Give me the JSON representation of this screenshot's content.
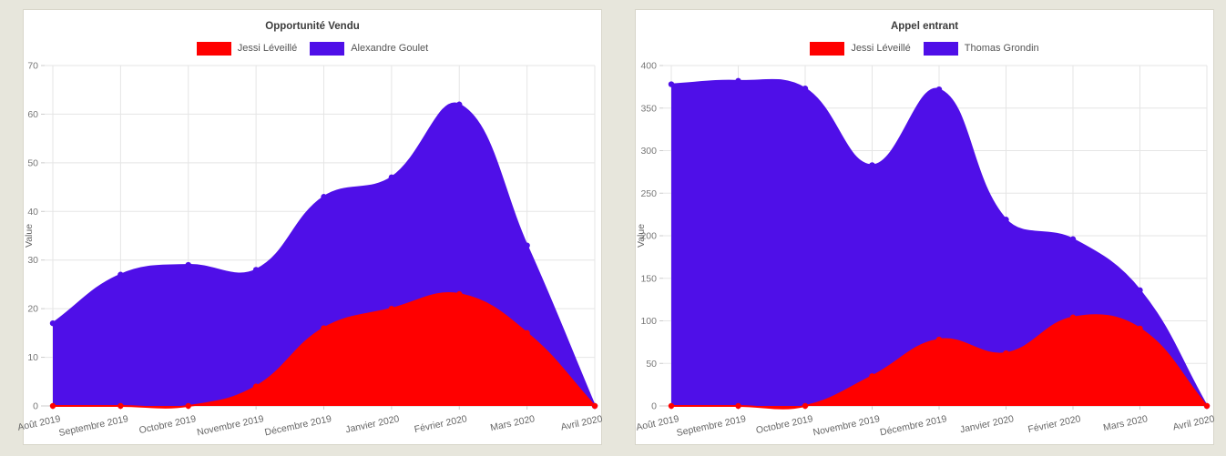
{
  "background_color": "#e7e6dc",
  "charts": [
    {
      "title": "Opportunité Vendu",
      "y_axis_label": "Value",
      "legend": [
        {
          "label": "Jessi Léveillé",
          "color": "#ff0000"
        },
        {
          "label": "Alexandre Goulet",
          "color": "#4f0fe8"
        }
      ]
    },
    {
      "title": "Appel entrant",
      "y_axis_label": "Value",
      "legend": [
        {
          "label": "Jessi Léveillé",
          "color": "#ff0000"
        },
        {
          "label": "Thomas Grondin",
          "color": "#4f0fe8"
        }
      ]
    }
  ],
  "chart_data": [
    {
      "type": "area",
      "title": "Opportunité Vendu",
      "categories": [
        "Août 2019",
        "Septembre 2019",
        "Octobre 2019",
        "Novembre 2019",
        "Décembre 2019",
        "Janvier 2020",
        "Février 2020",
        "Mars 2020",
        "Avril 2020"
      ],
      "series": [
        {
          "name": "Jessi Léveillé",
          "color": "#ff0000",
          "values": [
            0,
            0,
            0,
            4,
            16,
            20,
            23,
            15,
            0
          ]
        },
        {
          "name": "Alexandre Goulet",
          "color": "#4f0fe8",
          "values": [
            17,
            27,
            29,
            28,
            43,
            47,
            62,
            33,
            0
          ]
        }
      ],
      "stacked": false,
      "xlabel": "",
      "ylabel": "Value",
      "ylim": [
        0,
        70
      ],
      "ytick_step": 10,
      "grid": true,
      "legend_position": "top",
      "smoothing": "bezier",
      "point_markers": true
    },
    {
      "type": "area",
      "title": "Appel entrant",
      "categories": [
        "Août 2019",
        "Septembre 2019",
        "Octobre 2019",
        "Novembre 2019",
        "Décembre 2019",
        "Janvier 2020",
        "Février 2020",
        "Mars 2020",
        "Avril 2020"
      ],
      "series": [
        {
          "name": "Jessi Léveillé",
          "color": "#ff0000",
          "values": [
            0,
            0,
            0,
            35,
            78,
            62,
            104,
            91,
            0
          ]
        },
        {
          "name": "Thomas Grondin",
          "color": "#4f0fe8",
          "values": [
            378,
            382,
            373,
            283,
            372,
            219,
            196,
            136,
            0
          ]
        }
      ],
      "stacked": false,
      "xlabel": "",
      "ylabel": "Value",
      "ylim": [
        0,
        400
      ],
      "ytick_step": 50,
      "grid": true,
      "legend_position": "top",
      "smoothing": "bezier",
      "point_markers": true
    }
  ],
  "style": {
    "grid_color": "#e5e5e5",
    "axis_line_color": "#cccccc",
    "tick_label_color": "#777777",
    "x_label_rotation_deg": -12
  }
}
